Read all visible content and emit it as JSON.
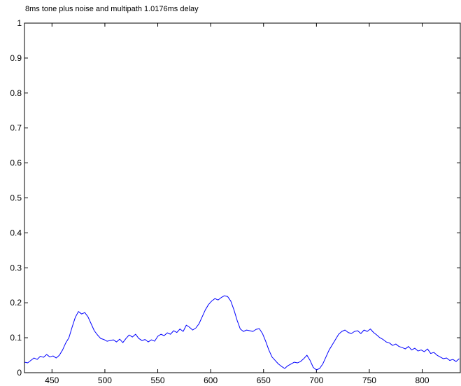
{
  "chart_data": {
    "type": "line",
    "title": "8ms tone plus noise and multipath 1.0176ms delay",
    "xlabel": "",
    "ylabel": "",
    "xlim": [
      424,
      836
    ],
    "ylim": [
      0,
      1
    ],
    "grid": false,
    "line_color": "#0000ff",
    "axis_color": "#000000",
    "x_ticks": [
      450,
      500,
      550,
      600,
      650,
      700,
      750,
      800
    ],
    "x_tick_labels": [
      "450",
      "500",
      "550",
      "600",
      "650",
      "700",
      "750",
      "800"
    ],
    "y_ticks": [
      0,
      0.1,
      0.2,
      0.3,
      0.4,
      0.5,
      0.6,
      0.7,
      0.8,
      0.9,
      1
    ],
    "y_tick_labels": [
      "0",
      "0.1",
      "0.2",
      "0.3",
      "0.4",
      "0.5",
      "0.6",
      "0.7",
      "0.8",
      "0.9",
      "1"
    ],
    "series": [
      {
        "x": [
          424,
          427,
          430,
          433,
          436,
          439,
          442,
          445,
          448,
          451,
          454,
          457,
          460,
          463,
          466,
          469,
          472,
          475,
          478,
          481,
          484,
          487,
          490,
          493,
          496,
          499,
          502,
          505,
          508,
          511,
          514,
          517,
          520,
          523,
          526,
          529,
          532,
          535,
          538,
          541,
          544,
          547,
          550,
          553,
          556,
          559,
          562,
          565,
          568,
          571,
          574,
          577,
          580,
          583,
          586,
          589,
          592,
          595,
          598,
          601,
          604,
          607,
          610,
          613,
          616,
          619,
          622,
          625,
          628,
          631,
          634,
          637,
          640,
          643,
          646,
          649,
          652,
          655,
          658,
          661,
          664,
          667,
          670,
          673,
          676,
          679,
          682,
          685,
          688,
          691,
          694,
          697,
          700,
          703,
          706,
          709,
          712,
          715,
          718,
          721,
          724,
          727,
          730,
          733,
          736,
          739,
          742,
          745,
          748,
          751,
          754,
          757,
          760,
          763,
          766,
          769,
          772,
          775,
          778,
          781,
          784,
          787,
          790,
          793,
          796,
          799,
          802,
          805,
          808,
          811,
          814,
          817,
          820,
          823,
          826,
          829,
          832,
          835
        ],
        "values": [
          0.03,
          0.028,
          0.035,
          0.042,
          0.038,
          0.047,
          0.044,
          0.052,
          0.045,
          0.048,
          0.042,
          0.05,
          0.065,
          0.085,
          0.1,
          0.13,
          0.158,
          0.175,
          0.168,
          0.172,
          0.16,
          0.14,
          0.12,
          0.108,
          0.098,
          0.095,
          0.09,
          0.092,
          0.094,
          0.088,
          0.096,
          0.086,
          0.098,
          0.108,
          0.102,
          0.11,
          0.098,
          0.092,
          0.095,
          0.088,
          0.094,
          0.09,
          0.104,
          0.11,
          0.106,
          0.114,
          0.11,
          0.12,
          0.115,
          0.125,
          0.118,
          0.136,
          0.13,
          0.122,
          0.128,
          0.14,
          0.16,
          0.18,
          0.195,
          0.205,
          0.212,
          0.208,
          0.215,
          0.22,
          0.218,
          0.205,
          0.18,
          0.15,
          0.125,
          0.118,
          0.122,
          0.12,
          0.118,
          0.124,
          0.126,
          0.112,
          0.09,
          0.065,
          0.045,
          0.035,
          0.025,
          0.018,
          0.012,
          0.02,
          0.025,
          0.03,
          0.028,
          0.032,
          0.04,
          0.05,
          0.035,
          0.015,
          0.008,
          0.012,
          0.025,
          0.045,
          0.065,
          0.08,
          0.095,
          0.11,
          0.118,
          0.122,
          0.115,
          0.112,
          0.118,
          0.12,
          0.112,
          0.122,
          0.118,
          0.125,
          0.115,
          0.108,
          0.1,
          0.095,
          0.088,
          0.085,
          0.078,
          0.082,
          0.075,
          0.072,
          0.068,
          0.075,
          0.065,
          0.07,
          0.062,
          0.065,
          0.06,
          0.068,
          0.055,
          0.058,
          0.05,
          0.045,
          0.04,
          0.042,
          0.035,
          0.038,
          0.032,
          0.04
        ]
      }
    ]
  }
}
